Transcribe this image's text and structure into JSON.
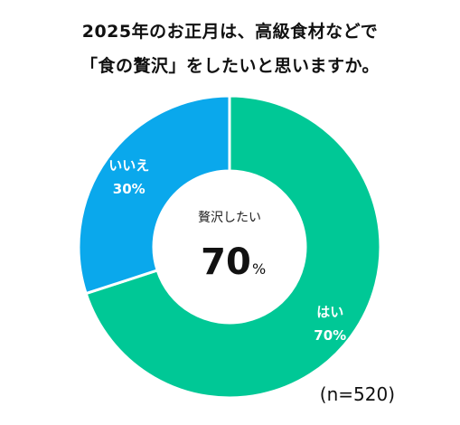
{
  "chart_data": {
    "type": "pie",
    "title_line1": "2025年のお正月は、高級食材などで",
    "title_line2": "「食の贅沢」をしたいと思いますか。",
    "slices": [
      {
        "label": "はい",
        "value": 70,
        "display": "70%",
        "color": "#00C896"
      },
      {
        "label": "いいえ",
        "value": 30,
        "display": "30%",
        "color": "#0AA8EC"
      }
    ],
    "center_caption": "贅沢したい",
    "center_value": "70",
    "center_unit": "%",
    "note": "(n=520)"
  }
}
